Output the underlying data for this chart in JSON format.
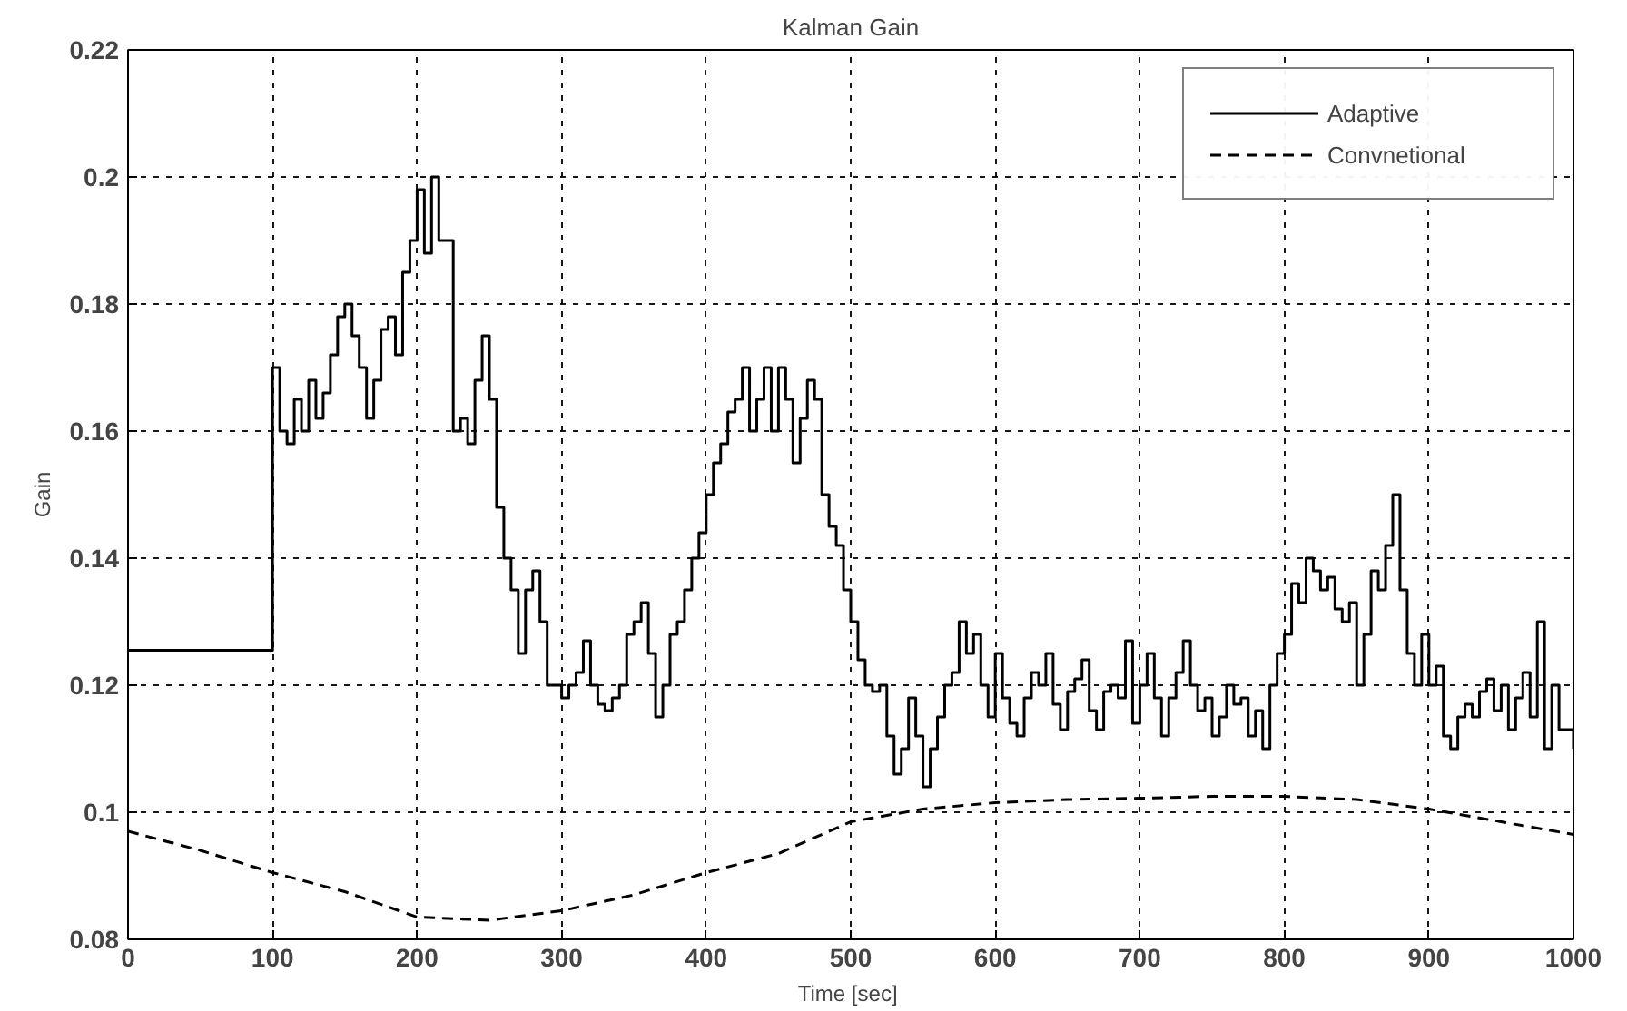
{
  "chart_data": {
    "type": "step",
    "title": "Kalman Gain",
    "xlabel": "Time  [sec]",
    "ylabel": "Gain",
    "xlim": [
      0,
      1000
    ],
    "ylim": [
      0.08,
      0.22
    ],
    "xticks": [
      0,
      100,
      200,
      300,
      400,
      500,
      600,
      700,
      800,
      900,
      1000
    ],
    "yticks": [
      {
        "value": 0.08,
        "label": "0.08"
      },
      {
        "value": 0.1,
        "label": "0.1"
      },
      {
        "value": 0.12,
        "label": "0.12"
      },
      {
        "value": 0.14,
        "label": "0.14"
      },
      {
        "value": 0.16,
        "label": "0.16"
      },
      {
        "value": 0.18,
        "label": "0.18"
      },
      {
        "value": 0.2,
        "label": "0.2"
      },
      {
        "value": 0.22,
        "label": "0.22"
      }
    ],
    "grid": true,
    "legend": "top right",
    "series": [
      {
        "name": "Adaptive",
        "color": "#000000",
        "line_style": "solid",
        "x": [
          0,
          100,
          105,
          110,
          115,
          120,
          125,
          130,
          135,
          140,
          145,
          150,
          155,
          160,
          165,
          170,
          175,
          180,
          185,
          190,
          195,
          200,
          205,
          210,
          215,
          220,
          225,
          230,
          235,
          240,
          245,
          250,
          255,
          260,
          265,
          270,
          275,
          280,
          285,
          290,
          295,
          300,
          305,
          310,
          315,
          320,
          325,
          330,
          335,
          340,
          345,
          350,
          355,
          360,
          365,
          370,
          375,
          380,
          385,
          390,
          395,
          400,
          405,
          410,
          415,
          420,
          425,
          430,
          435,
          440,
          445,
          450,
          455,
          460,
          465,
          470,
          475,
          480,
          485,
          490,
          495,
          500,
          505,
          510,
          515,
          520,
          525,
          530,
          535,
          540,
          545,
          550,
          555,
          560,
          565,
          570,
          575,
          580,
          585,
          590,
          595,
          600,
          605,
          610,
          615,
          620,
          625,
          630,
          635,
          640,
          645,
          650,
          655,
          660,
          665,
          670,
          675,
          680,
          685,
          690,
          695,
          700,
          705,
          710,
          715,
          720,
          725,
          730,
          735,
          740,
          745,
          750,
          755,
          760,
          765,
          770,
          775,
          780,
          785,
          790,
          795,
          800,
          805,
          810,
          815,
          820,
          825,
          830,
          835,
          840,
          845,
          850,
          855,
          860,
          865,
          870,
          875,
          880,
          885,
          890,
          895,
          900,
          905,
          910,
          915,
          920,
          925,
          930,
          935,
          940,
          945,
          950,
          955,
          960,
          965,
          970,
          975,
          980,
          985,
          990,
          995,
          1000
        ],
        "values": [
          0.1255,
          0.17,
          0.16,
          0.158,
          0.165,
          0.16,
          0.168,
          0.162,
          0.166,
          0.172,
          0.178,
          0.18,
          0.175,
          0.17,
          0.162,
          0.168,
          0.176,
          0.178,
          0.172,
          0.185,
          0.19,
          0.198,
          0.188,
          0.2,
          0.19,
          0.19,
          0.16,
          0.162,
          0.158,
          0.168,
          0.175,
          0.165,
          0.148,
          0.14,
          0.135,
          0.125,
          0.135,
          0.138,
          0.13,
          0.12,
          0.12,
          0.118,
          0.12,
          0.122,
          0.127,
          0.12,
          0.117,
          0.116,
          0.118,
          0.12,
          0.128,
          0.13,
          0.133,
          0.125,
          0.115,
          0.12,
          0.128,
          0.13,
          0.135,
          0.14,
          0.144,
          0.15,
          0.155,
          0.158,
          0.163,
          0.165,
          0.17,
          0.16,
          0.165,
          0.17,
          0.16,
          0.17,
          0.165,
          0.155,
          0.162,
          0.168,
          0.165,
          0.15,
          0.145,
          0.142,
          0.135,
          0.13,
          0.124,
          0.12,
          0.119,
          0.12,
          0.112,
          0.106,
          0.11,
          0.118,
          0.112,
          0.104,
          0.11,
          0.115,
          0.12,
          0.122,
          0.13,
          0.125,
          0.128,
          0.12,
          0.115,
          0.125,
          0.118,
          0.114,
          0.112,
          0.118,
          0.122,
          0.12,
          0.125,
          0.117,
          0.113,
          0.119,
          0.121,
          0.124,
          0.116,
          0.113,
          0.119,
          0.12,
          0.118,
          0.127,
          0.114,
          0.12,
          0.125,
          0.118,
          0.112,
          0.118,
          0.122,
          0.127,
          0.12,
          0.116,
          0.118,
          0.112,
          0.115,
          0.12,
          0.117,
          0.118,
          0.112,
          0.116,
          0.11,
          0.12,
          0.125,
          0.128,
          0.136,
          0.133,
          0.14,
          0.138,
          0.135,
          0.137,
          0.132,
          0.13,
          0.133,
          0.12,
          0.128,
          0.138,
          0.135,
          0.142,
          0.15,
          0.135,
          0.125,
          0.12,
          0.128,
          0.12,
          0.123,
          0.112,
          0.11,
          0.115,
          0.117,
          0.115,
          0.119,
          0.121,
          0.116,
          0.12,
          0.113,
          0.118,
          0.122,
          0.115,
          0.13,
          0.11,
          0.12,
          0.113,
          0.113,
          0.11
        ]
      },
      {
        "name": "Convnetional",
        "type": "line",
        "color": "#000000",
        "line_style": "dashed",
        "x": [
          0,
          50,
          100,
          150,
          200,
          250,
          300,
          350,
          400,
          450,
          500,
          550,
          600,
          650,
          700,
          750,
          800,
          850,
          900,
          950,
          1000
        ],
        "values": [
          0.097,
          0.094,
          0.0905,
          0.0875,
          0.0835,
          0.083,
          0.0845,
          0.087,
          0.0905,
          0.0935,
          0.0985,
          0.1005,
          0.1015,
          0.102,
          0.1022,
          0.1025,
          0.1025,
          0.102,
          0.1005,
          0.0985,
          0.0965
        ]
      }
    ]
  }
}
